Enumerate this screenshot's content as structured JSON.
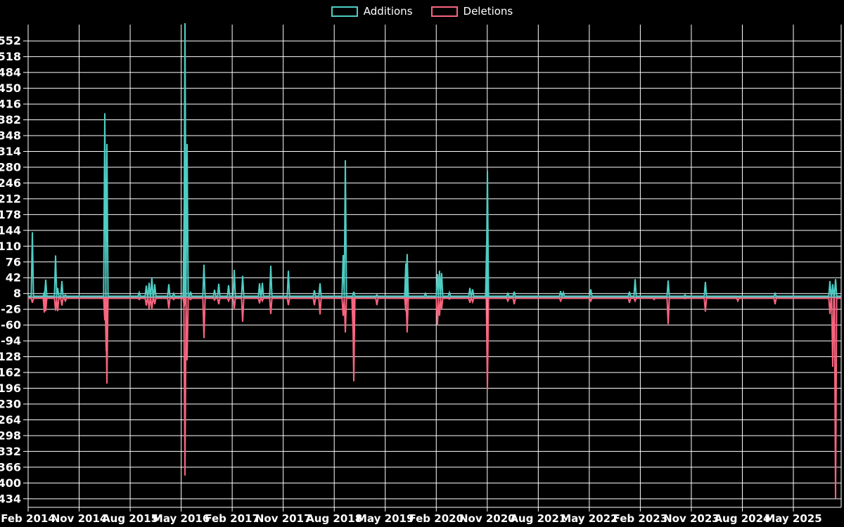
{
  "legend": [
    {
      "label": "Additions",
      "color": "#4ECDC4"
    },
    {
      "label": "Deletions",
      "color": "#F8657F"
    }
  ],
  "colors": {
    "background": "#000000",
    "grid": "#FFFFFF",
    "zero_line": "#8FA5AE",
    "tick_text": "#FFFFFF",
    "additions": "#4ECDC4",
    "deletions": "#F8657F"
  },
  "chart_data": {
    "type": "line",
    "title": "",
    "xlabel": "",
    "ylabel": "",
    "grid": true,
    "legend_position": "top-center",
    "ylim": [
      -452,
      586
    ],
    "y_ticks": [
      552,
      518,
      484,
      450,
      416,
      382,
      348,
      314,
      280,
      246,
      212,
      178,
      144,
      110,
      76,
      42,
      8,
      -26,
      -60,
      -94,
      -128,
      -162,
      -196,
      -230,
      -264,
      -298,
      -332,
      -366,
      -400,
      -434
    ],
    "x_tick_labels": [
      "Feb 2014",
      "Nov 2014",
      "Aug 2015",
      "May 2016",
      "Feb 2017",
      "Nov 2017",
      "Aug 2018",
      "May 2019",
      "Feb 2020",
      "Nov 2020",
      "Aug 2021",
      "May 2022",
      "Feb 2023",
      "Nov 2023",
      "Aug 2024",
      "May 2025"
    ],
    "baseline": 0,
    "series": [
      {
        "name": "Additions",
        "color": "#4ECDC4",
        "points": [
          [
            0.0052,
            140
          ],
          [
            0.0199,
            10
          ],
          [
            0.0216,
            38
          ],
          [
            0.0337,
            90
          ],
          [
            0.0363,
            20
          ],
          [
            0.0415,
            35
          ],
          [
            0.0458,
            5
          ],
          [
            0.0943,
            396
          ],
          [
            0.0969,
            330
          ],
          [
            0.1367,
            10
          ],
          [
            0.1453,
            25
          ],
          [
            0.1488,
            31
          ],
          [
            0.1522,
            43
          ],
          [
            0.1557,
            28
          ],
          [
            0.173,
            28
          ],
          [
            0.179,
            8
          ],
          [
            0.192,
            210
          ],
          [
            0.1929,
            600
          ],
          [
            0.1955,
            330
          ],
          [
            0.1998,
            12
          ],
          [
            0.2163,
            70
          ],
          [
            0.2292,
            16
          ],
          [
            0.2344,
            29
          ],
          [
            0.2465,
            26
          ],
          [
            0.2535,
            59
          ],
          [
            0.2638,
            46
          ],
          [
            0.2846,
            30
          ],
          [
            0.2881,
            31
          ],
          [
            0.2984,
            68
          ],
          [
            0.3201,
            57
          ],
          [
            0.3521,
            15
          ],
          [
            0.359,
            30
          ],
          [
            0.3875,
            91
          ],
          [
            0.3901,
            295
          ],
          [
            0.4005,
            12
          ],
          [
            0.429,
            5
          ],
          [
            0.4645,
            73
          ],
          [
            0.4662,
            93
          ],
          [
            0.4887,
            8
          ],
          [
            0.5035,
            50
          ],
          [
            0.506,
            57
          ],
          [
            0.5086,
            52
          ],
          [
            0.5182,
            10
          ],
          [
            0.5433,
            20
          ],
          [
            0.5467,
            17
          ],
          [
            0.564,
            120
          ],
          [
            0.5649,
            273
          ],
          [
            0.59,
            8
          ],
          [
            0.5978,
            12
          ],
          [
            0.6549,
            13
          ],
          [
            0.6583,
            10
          ],
          [
            0.692,
            17
          ],
          [
            0.7396,
            12
          ],
          [
            0.7465,
            39
          ],
          [
            0.7872,
            36
          ],
          [
            0.808,
            5
          ],
          [
            0.833,
            33
          ],
          [
            0.8728,
            2
          ],
          [
            0.9187,
            8
          ],
          [
            0.9862,
            35
          ],
          [
            0.9896,
            28
          ],
          [
            0.9931,
            39
          ]
        ]
      },
      {
        "name": "Deletions",
        "color": "#F8657F",
        "points": [
          [
            0.0052,
            -12
          ],
          [
            0.0199,
            -33
          ],
          [
            0.0216,
            -30
          ],
          [
            0.0337,
            -29
          ],
          [
            0.0363,
            -30
          ],
          [
            0.0415,
            -18
          ],
          [
            0.0458,
            -8
          ],
          [
            0.0943,
            -50
          ],
          [
            0.096,
            -116
          ],
          [
            0.0969,
            -186
          ],
          [
            0.1367,
            -5
          ],
          [
            0.1453,
            -18
          ],
          [
            0.1488,
            -25
          ],
          [
            0.1522,
            -27
          ],
          [
            0.1557,
            -15
          ],
          [
            0.173,
            -24
          ],
          [
            0.179,
            -5
          ],
          [
            0.192,
            -20
          ],
          [
            0.1929,
            -384
          ],
          [
            0.1955,
            -136
          ],
          [
            0.1998,
            -5
          ],
          [
            0.2163,
            -88
          ],
          [
            0.2292,
            -6
          ],
          [
            0.2344,
            -15
          ],
          [
            0.2465,
            -8
          ],
          [
            0.2535,
            -26
          ],
          [
            0.2638,
            -53
          ],
          [
            0.2846,
            -13
          ],
          [
            0.2881,
            -8
          ],
          [
            0.2984,
            -36
          ],
          [
            0.3201,
            -17
          ],
          [
            0.3521,
            -17
          ],
          [
            0.359,
            -37
          ],
          [
            0.3875,
            -40
          ],
          [
            0.3901,
            -76
          ],
          [
            0.3996,
            -70
          ],
          [
            0.4005,
            -181
          ],
          [
            0.429,
            -17
          ],
          [
            0.4645,
            -30
          ],
          [
            0.4662,
            -76
          ],
          [
            0.5035,
            -60
          ],
          [
            0.506,
            -40
          ],
          [
            0.5086,
            -25
          ],
          [
            0.5182,
            -4
          ],
          [
            0.5433,
            -12
          ],
          [
            0.5467,
            -10
          ],
          [
            0.5649,
            -199
          ],
          [
            0.59,
            -8
          ],
          [
            0.5978,
            -15
          ],
          [
            0.6549,
            -8
          ],
          [
            0.692,
            -8
          ],
          [
            0.7396,
            -12
          ],
          [
            0.7465,
            -8
          ],
          [
            0.7699,
            -5
          ],
          [
            0.7872,
            -58
          ],
          [
            0.808,
            -3
          ],
          [
            0.833,
            -31
          ],
          [
            0.8728,
            -8
          ],
          [
            0.9187,
            -15
          ],
          [
            0.9862,
            -36
          ],
          [
            0.9896,
            -150
          ],
          [
            0.9931,
            -434
          ]
        ]
      }
    ]
  }
}
